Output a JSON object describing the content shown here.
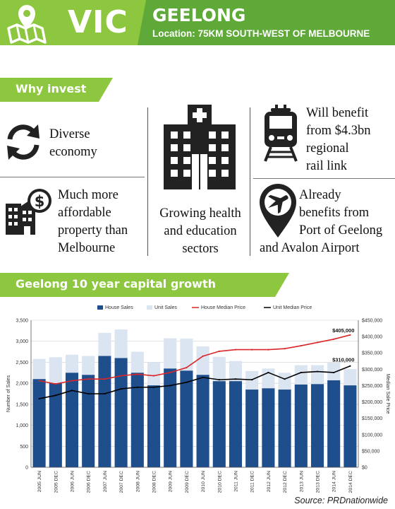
{
  "header": {
    "state": "VIC",
    "city": "GEELONG",
    "location": "Location: 75KM SOUTH-WEST OF MELBOURNE",
    "map_icon": "map-pin-icon"
  },
  "why_invest": {
    "title": "Why invest",
    "items": [
      {
        "text": "Diverse economy",
        "lines": [
          "Diverse",
          "economy"
        ],
        "icon": "cycle-arrows-icon"
      },
      {
        "text": "Much more affordable property than Melbourne",
        "lines": [
          "Much more",
          "affordable",
          "property than",
          "Melbourne"
        ],
        "icon": "buildings-dollar-icon"
      },
      {
        "text": "Growing health and education sectors",
        "lines": [
          "Growing health",
          "and education",
          "sectors"
        ],
        "icon": "hospital-icon"
      },
      {
        "text": "Will benefit from $4.3bn regional rail link",
        "lines": [
          "Will benefit",
          "from $4.3bn",
          "regional",
          "rail link"
        ],
        "icon": "train-icon"
      },
      {
        "text": "Already benefits from Port of Geelong and Avalon Airport",
        "lines": [
          "Already",
          "benefits from",
          "Port of Geelong",
          "and Avalon Airport"
        ],
        "icon": "airplane-pin-icon"
      }
    ]
  },
  "growth_section": {
    "title": "Geelong 10 year capital growth"
  },
  "source": "Source: PRDnationwide",
  "colors": {
    "green_light": "#8dc63f",
    "green_dark": "#5ea938",
    "house_bar": "#1f4e8c",
    "unit_bar": "#dbe5f1",
    "house_line": "#d9262b",
    "unit_line": "#000000"
  },
  "chart_data": {
    "type": "bar",
    "stacked": true,
    "categories": [
      "2005 JUN",
      "2005 DEC",
      "2006 JUN",
      "2006 DEC",
      "2007 JUN",
      "2007 DEC",
      "2008 JUN",
      "2008 DEC",
      "2009 JUN",
      "2009 DEC",
      "2010 JUN",
      "2010 DEC",
      "2011 JUN",
      "2011 DEC",
      "2012 JUN",
      "2012 DEC",
      "2013 JUN",
      "2013 DEC",
      "2014 JUN",
      "2014 DEC"
    ],
    "series": [
      {
        "name": "House Sales",
        "type": "bar",
        "axis": "left",
        "values": [
          2100,
          2000,
          2250,
          2200,
          2650,
          2600,
          2250,
          1950,
          2350,
          2300,
          2200,
          2050,
          2050,
          1850,
          1880,
          1850,
          1970,
          1980,
          2070,
          1950
        ]
      },
      {
        "name": "Unit Sales",
        "type": "bar",
        "axis": "left",
        "values": [
          480,
          620,
          430,
          450,
          550,
          680,
          500,
          550,
          720,
          760,
          680,
          580,
          480,
          440,
          470,
          400,
          460,
          450,
          420,
          390
        ]
      },
      {
        "name": "House Median Price",
        "type": "line",
        "axis": "right",
        "values": [
          265000,
          255000,
          265000,
          270000,
          270000,
          280000,
          285000,
          280000,
          290000,
          305000,
          340000,
          355000,
          360000,
          360000,
          360000,
          363000,
          372000,
          382000,
          392000,
          405000
        ]
      },
      {
        "name": "Unit Median Price",
        "type": "line",
        "axis": "right",
        "values": [
          210000,
          220000,
          235000,
          225000,
          225000,
          240000,
          245000,
          245000,
          250000,
          260000,
          275000,
          268000,
          270000,
          268000,
          290000,
          270000,
          290000,
          293000,
          290000,
          310000
        ]
      }
    ],
    "ylabel": "Number of Sales",
    "y2label": "Median Sale Price",
    "ylim": [
      0,
      3500
    ],
    "y2lim": [
      0,
      450000
    ],
    "yticks": [
      "0",
      "500",
      "1,000",
      "1,500",
      "2,000",
      "2,500",
      "3,000",
      "3,500"
    ],
    "y2ticks": [
      "$0",
      "$50,000",
      "$100,000",
      "$150,000",
      "$200,000",
      "$250,000",
      "$300,000",
      "$350,000",
      "$400,000",
      "$450,000"
    ],
    "annotations": [
      {
        "series": "House Median Price",
        "label": "$405,000"
      },
      {
        "series": "Unit Median Price",
        "label": "$310,000"
      }
    ],
    "legend": "top",
    "grid": true
  }
}
